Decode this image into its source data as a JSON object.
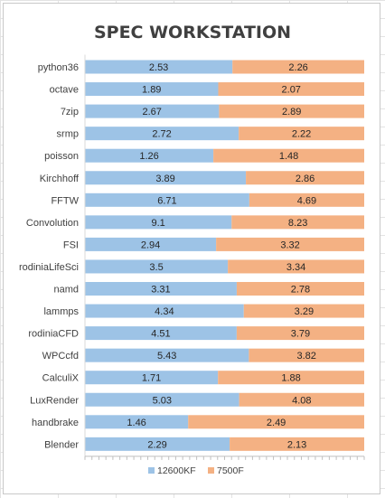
{
  "chart_data": {
    "type": "bar",
    "stacked": "percent",
    "orientation": "horizontal",
    "title": "SPEC WORKSTATION",
    "categories": [
      "python36",
      "octave",
      "7zip",
      "srmp",
      "poisson",
      "Kirchhoff",
      "FFTW",
      "Convolution",
      "FSI",
      "rodiniaLifeSci",
      "namd",
      "lammps",
      "rodiniaCFD",
      "WPCcfd",
      "CalculiX",
      "LuxRender",
      "handbrake",
      "Blender"
    ],
    "series": [
      {
        "name": "12600KF",
        "color": "#9dc3e6",
        "values": [
          2.53,
          1.89,
          2.67,
          2.72,
          1.26,
          3.89,
          6.71,
          9.1,
          2.94,
          3.5,
          3.31,
          4.34,
          4.51,
          5.43,
          1.71,
          5.03,
          1.46,
          2.29
        ]
      },
      {
        "name": "7500F",
        "color": "#f4b183",
        "values": [
          2.26,
          2.07,
          2.89,
          2.22,
          1.48,
          2.86,
          4.69,
          8.23,
          3.32,
          3.34,
          2.78,
          3.29,
          3.79,
          3.82,
          1.88,
          4.08,
          2.49,
          2.13
        ]
      }
    ],
    "legend_position": "bottom",
    "grid": false
  }
}
